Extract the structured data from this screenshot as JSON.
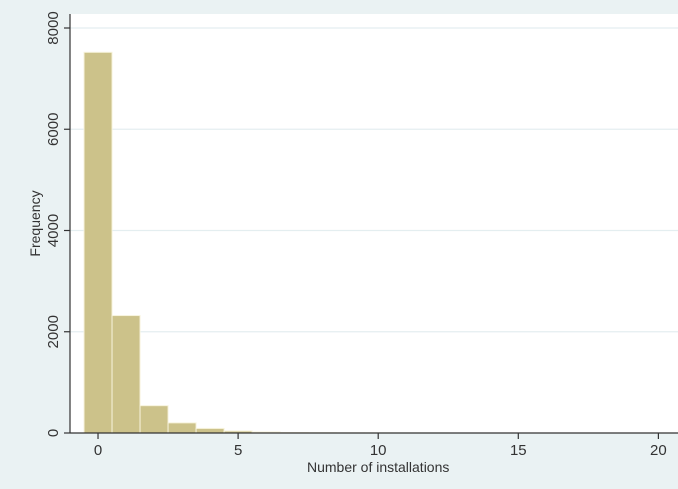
{
  "chart_data": {
    "type": "histogram",
    "xlabel": "Number of installations",
    "ylabel": "Frequency",
    "xlim": [
      -1,
      20.7
    ],
    "ylim": [
      0,
      8000
    ],
    "x_ticks": [
      0,
      5,
      10,
      15,
      20
    ],
    "x_tick_labels": [
      "0",
      "5",
      "10",
      "15",
      "20"
    ],
    "y_ticks": [
      0,
      2000,
      4000,
      6000,
      8000
    ],
    "y_tick_labels": [
      "0",
      "2000",
      "4000",
      "6000",
      "8000"
    ],
    "bin_width": 1,
    "bins": [
      {
        "x": 0,
        "value": 7520
      },
      {
        "x": 1,
        "value": 2320
      },
      {
        "x": 2,
        "value": 540
      },
      {
        "x": 3,
        "value": 200
      },
      {
        "x": 4,
        "value": 90
      },
      {
        "x": 5,
        "value": 40
      },
      {
        "x": 6,
        "value": 20
      },
      {
        "x": 7,
        "value": 10
      },
      {
        "x": 8,
        "value": 6
      },
      {
        "x": 9,
        "value": 4
      },
      {
        "x": 10,
        "value": 3
      },
      {
        "x": 11,
        "value": 2
      },
      {
        "x": 12,
        "value": 2
      },
      {
        "x": 13,
        "value": 1
      },
      {
        "x": 14,
        "value": 1
      },
      {
        "x": 15,
        "value": 1
      },
      {
        "x": 16,
        "value": 1
      },
      {
        "x": 17,
        "value": 1
      },
      {
        "x": 18,
        "value": 1
      },
      {
        "x": 19,
        "value": 1
      },
      {
        "x": 20,
        "value": 1
      }
    ],
    "grid": true,
    "legend": "none",
    "colors": {
      "bar_fill": "#ccc28a",
      "bar_stroke": "#f7f3dc",
      "plot_background": "#ffffff",
      "outer_background": "#eaf2f3",
      "grid": "#e4eef0",
      "axis": "#333333"
    }
  }
}
